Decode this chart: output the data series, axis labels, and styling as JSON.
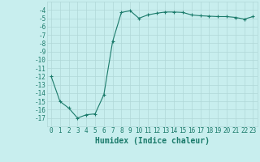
{
  "x": [
    0,
    1,
    2,
    3,
    4,
    5,
    6,
    7,
    8,
    9,
    10,
    11,
    12,
    13,
    14,
    15,
    16,
    17,
    18,
    19,
    20,
    21,
    22,
    23
  ],
  "y": [
    -12,
    -15,
    -15.8,
    -17,
    -16.6,
    -16.5,
    -14.2,
    -7.8,
    -4.3,
    -4.1,
    -5.0,
    -4.6,
    -4.4,
    -4.25,
    -4.25,
    -4.3,
    -4.6,
    -4.7,
    -4.75,
    -4.8,
    -4.8,
    -4.9,
    -5.1,
    -4.8
  ],
  "line_color": "#1a7a6a",
  "marker": "+",
  "bg_color": "#c8eeee",
  "grid_color": "#b0d8d8",
  "xlabel": "Humidex (Indice chaleur)",
  "ylim": [
    -18,
    -3
  ],
  "xlim": [
    -0.5,
    23.5
  ],
  "yticks": [
    -4,
    -5,
    -6,
    -7,
    -8,
    -9,
    -10,
    -11,
    -12,
    -13,
    -14,
    -15,
    -16,
    -17
  ],
  "xticks": [
    0,
    1,
    2,
    3,
    4,
    5,
    6,
    7,
    8,
    9,
    10,
    11,
    12,
    13,
    14,
    15,
    16,
    17,
    18,
    19,
    20,
    21,
    22,
    23
  ],
  "label_color": "#1a7a6a",
  "xlabel_fontsize": 7,
  "tick_fontsize": 5.5
}
